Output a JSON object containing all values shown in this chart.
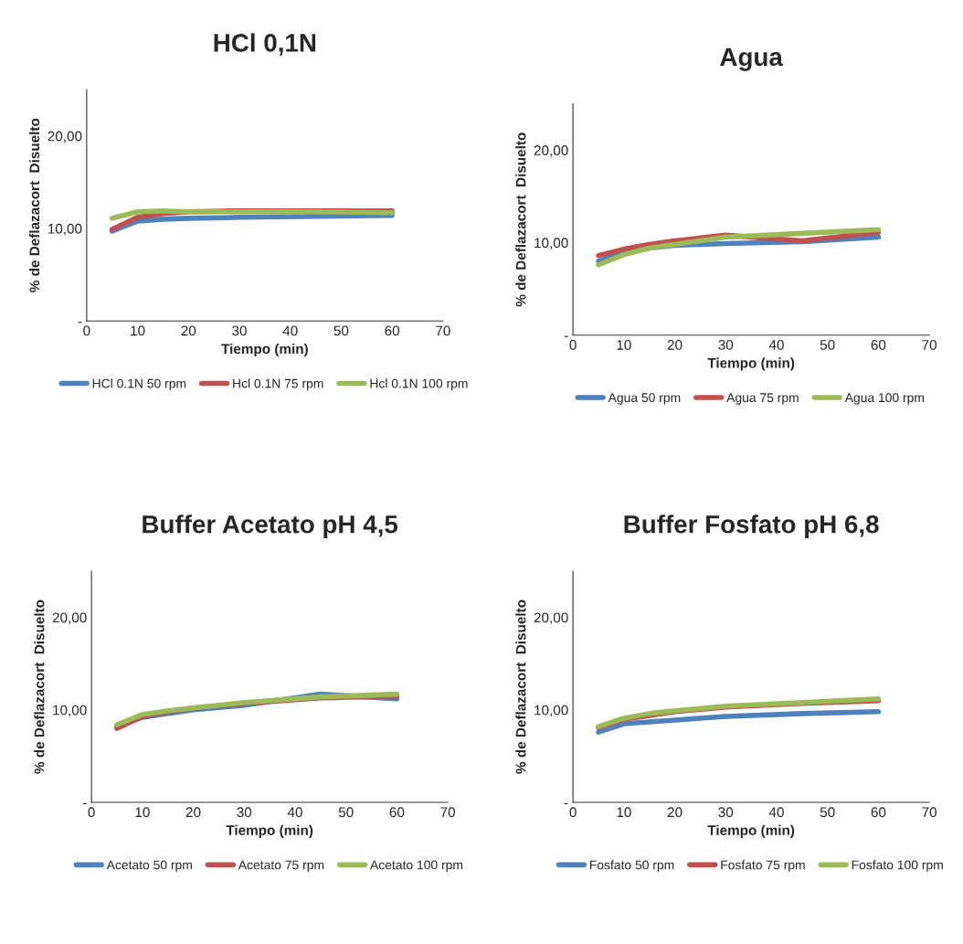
{
  "chart_data": [
    {
      "type": "line",
      "title": "HCl 0,1N",
      "xlabel": "Tiempo (min)",
      "ylabel": "% de Deflazacort  Disuelto",
      "x": [
        5,
        10,
        15,
        20,
        30,
        45,
        60
      ],
      "xlim": [
        0,
        70
      ],
      "xticks": [
        0,
        10,
        20,
        30,
        40,
        50,
        60,
        70
      ],
      "ylim": [
        0,
        25
      ],
      "yticks": [
        {
          "value": 0,
          "label": "-"
        },
        {
          "value": 10,
          "label": "10,00"
        },
        {
          "value": 20,
          "label": "20,00"
        }
      ],
      "grid": false,
      "legend": "bottom",
      "marker": "none",
      "line_style": "solid",
      "series": [
        {
          "name": "HCl 0.1N 50 rpm",
          "color": "#4f81bd",
          "values": [
            9.7,
            10.8,
            11.0,
            11.1,
            11.2,
            11.3,
            11.4
          ]
        },
        {
          "name": "Hcl 0.1N 75 rpm",
          "color": "#c0504d",
          "values": [
            9.9,
            11.2,
            11.6,
            11.8,
            11.9,
            11.9,
            11.9
          ]
        },
        {
          "name": "Hcl 0.1N 100 rpm",
          "color": "#9bbb59",
          "values": [
            11.1,
            11.8,
            11.9,
            11.8,
            11.8,
            11.8,
            11.7
          ]
        }
      ]
    },
    {
      "type": "line",
      "title": "Agua",
      "xlabel": "Tiempo (min)",
      "ylabel": "% de Deflazacort  Disuelto",
      "x": [
        5,
        10,
        15,
        20,
        30,
        45,
        60
      ],
      "xlim": [
        0,
        70
      ],
      "xticks": [
        0,
        10,
        20,
        30,
        40,
        50,
        60,
        70
      ],
      "ylim": [
        0,
        25
      ],
      "yticks": [
        {
          "value": 0,
          "label": "-"
        },
        {
          "value": 10,
          "label": "10,00"
        },
        {
          "value": 20,
          "label": "20,00"
        }
      ],
      "grid": false,
      "legend": "bottom",
      "marker": "none",
      "line_style": "solid",
      "series": [
        {
          "name": "Agua 50 rpm",
          "color": "#4f81bd",
          "values": [
            8.0,
            8.9,
            9.4,
            9.7,
            9.9,
            10.1,
            10.6
          ]
        },
        {
          "name": "Agua 75 rpm",
          "color": "#c0504d",
          "values": [
            8.6,
            9.3,
            9.8,
            10.2,
            10.8,
            10.2,
            11.1
          ]
        },
        {
          "name": "Agua 100 rpm",
          "color": "#9bbb59",
          "values": [
            7.6,
            8.7,
            9.4,
            9.8,
            10.6,
            11.0,
            11.4
          ]
        }
      ]
    },
    {
      "type": "line",
      "title": "Buffer Acetato pH 4,5",
      "xlabel": "Tiempo (min)",
      "ylabel": "% de Deflazacort  Disuelto",
      "x": [
        5,
        10,
        15,
        20,
        30,
        45,
        60
      ],
      "xlim": [
        0,
        70
      ],
      "xticks": [
        0,
        10,
        20,
        30,
        40,
        50,
        60,
        70
      ],
      "ylim": [
        0,
        25
      ],
      "yticks": [
        {
          "value": 0,
          "label": "-"
        },
        {
          "value": 10,
          "label": "10,00"
        },
        {
          "value": 20,
          "label": "20,00"
        }
      ],
      "grid": false,
      "legend": "bottom",
      "marker": "none",
      "line_style": "solid",
      "series": [
        {
          "name": "Acetato 50 rpm",
          "color": "#4f81bd",
          "values": [
            8.2,
            9.2,
            9.6,
            10.0,
            10.5,
            11.7,
            11.2
          ]
        },
        {
          "name": "Acetato 75 rpm",
          "color": "#c0504d",
          "values": [
            8.0,
            9.3,
            9.8,
            10.2,
            10.7,
            11.3,
            11.5
          ]
        },
        {
          "name": "Acetato 100 rpm",
          "color": "#9bbb59",
          "values": [
            8.4,
            9.5,
            9.9,
            10.2,
            10.8,
            11.4,
            11.7
          ]
        }
      ]
    },
    {
      "type": "line",
      "title": "Buffer Fosfato pH 6,8",
      "xlabel": "Tiempo (min)",
      "ylabel": "% de Deflazacort  Disuelto",
      "x": [
        5,
        10,
        15,
        20,
        30,
        45,
        60
      ],
      "xlim": [
        0,
        70
      ],
      "xticks": [
        0,
        10,
        20,
        30,
        40,
        50,
        60,
        70
      ],
      "ylim": [
        0,
        25
      ],
      "yticks": [
        {
          "value": 0,
          "label": "-"
        },
        {
          "value": 10,
          "label": "10,00"
        },
        {
          "value": 20,
          "label": "20,00"
        }
      ],
      "grid": false,
      "legend": "bottom",
      "marker": "none",
      "line_style": "solid",
      "series": [
        {
          "name": "Fosfato 50 rpm",
          "color": "#4f81bd",
          "values": [
            7.6,
            8.5,
            8.7,
            8.9,
            9.3,
            9.6,
            9.8
          ]
        },
        {
          "name": "Fosfato 75 rpm",
          "color": "#c0504d",
          "values": [
            8.1,
            9.0,
            9.4,
            9.8,
            10.3,
            10.7,
            11.0
          ]
        },
        {
          "name": "Fosfato 100 rpm",
          "color": "#9bbb59",
          "values": [
            8.2,
            9.1,
            9.6,
            9.9,
            10.4,
            10.8,
            11.2
          ]
        }
      ]
    }
  ]
}
